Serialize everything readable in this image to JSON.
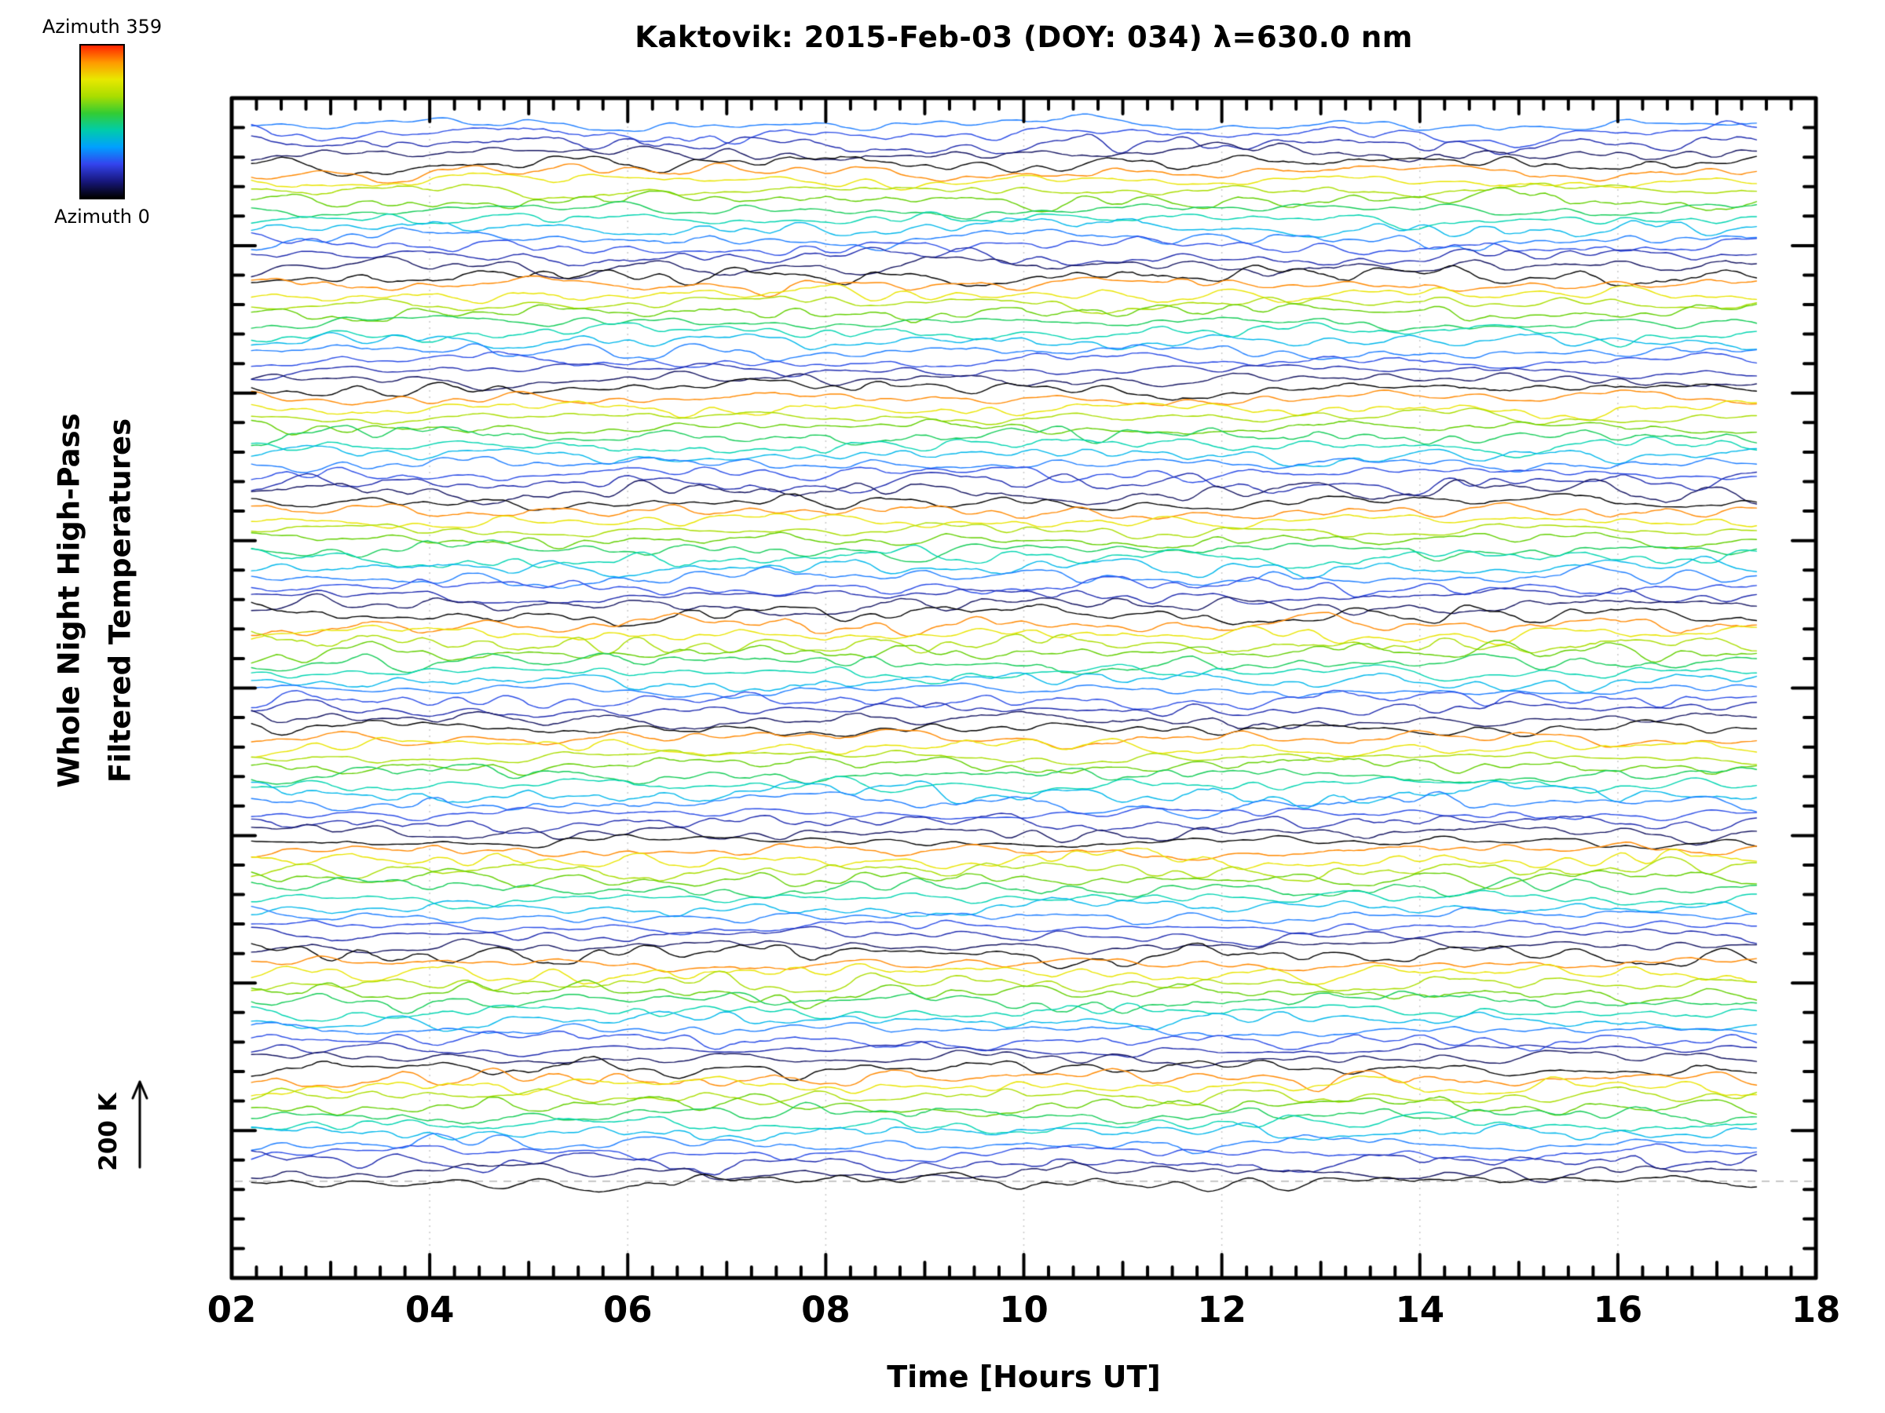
{
  "title": "Kaktovik: 2015-Feb-03 (DOY: 034) λ=630.0 nm",
  "colorbar": {
    "top_label": "Azimuth 359",
    "bottom_label": "Azimuth 0",
    "stops": [
      "#ff2200",
      "#ff9900",
      "#e8e800",
      "#aadd00",
      "#33cc33",
      "#00ccaa",
      "#00a0ff",
      "#3344ee",
      "#181880",
      "#000000"
    ]
  },
  "y_axis": {
    "label_line1": "Whole Night High-Pass",
    "label_line2": "Filtered Temperatures",
    "scale_marker": "200 K"
  },
  "x_axis": {
    "label": "Time [Hours UT]"
  },
  "chart_data": {
    "type": "line",
    "title": "Kaktovik: 2015-Feb-03 (DOY: 034) λ=630.0 nm",
    "xlabel": "Time [Hours UT]",
    "ylabel": "Whole Night High-Pass Filtered Temperatures",
    "x_axis_range": [
      2,
      18
    ],
    "x_tick_labels": [
      "02",
      "04",
      "06",
      "08",
      "10",
      "12",
      "14",
      "16",
      "18"
    ],
    "x_tick_hours": [
      2,
      4,
      6,
      8,
      10,
      12,
      14,
      16,
      18
    ],
    "x_minor_step_hours": 0.25,
    "data_x_range_hours": [
      2.2,
      17.4
    ],
    "gridline_hours": [
      4,
      6,
      8,
      10,
      12,
      14,
      16
    ],
    "n_traces": 113,
    "traces_per_color_cycle": 12,
    "color_cycle_phase": 4,
    "points_per_trace": 300,
    "azimuth_range": [
      0,
      359
    ],
    "amplitude_scale_label": "200 K",
    "baseline_dashed_y_frac": 0.918,
    "seed": 20150203,
    "colormap_stops": [
      {
        "t": 0.0,
        "color": "#000000"
      },
      {
        "t": 0.09,
        "color": "#18186a"
      },
      {
        "t": 0.2,
        "color": "#2233cc"
      },
      {
        "t": 0.3,
        "color": "#3366ff"
      },
      {
        "t": 0.38,
        "color": "#00a0ff"
      },
      {
        "t": 0.47,
        "color": "#00d8cc"
      },
      {
        "t": 0.56,
        "color": "#00cc77"
      },
      {
        "t": 0.65,
        "color": "#55cc00"
      },
      {
        "t": 0.75,
        "color": "#aadd00"
      },
      {
        "t": 0.83,
        "color": "#e8e800"
      },
      {
        "t": 0.91,
        "color": "#ff9100"
      },
      {
        "t": 1.0,
        "color": "#ff2a00"
      }
    ],
    "note": "Approximately 113 vertically offset, noise-like high-pass filtered temperature time series (one per azimuth look direction), spanning 02:12-17:24 UT; trace color cycles through the azimuth rainbow (0=black/dark blue to 359=red) every 12 traces from top to bottom; vertical amplitude scale bar corresponds to 200 K."
  }
}
